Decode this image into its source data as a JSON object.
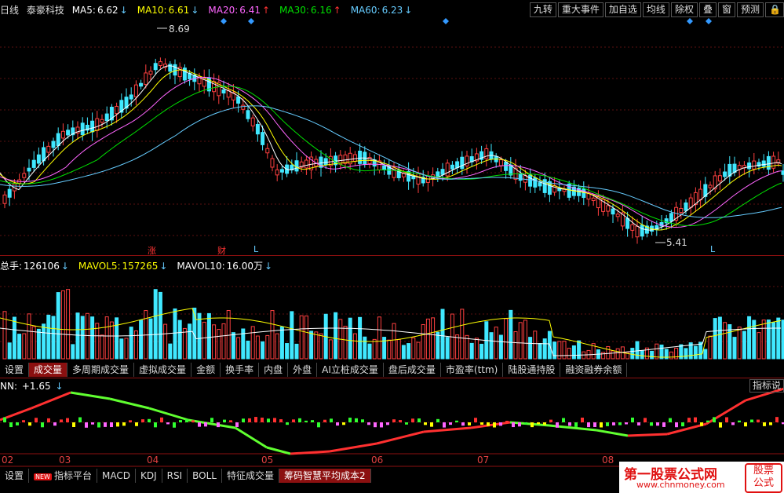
{
  "header": {
    "period": "日线",
    "stock_name": "泰豪科技",
    "ma": [
      {
        "label": "MA5:",
        "value": "6.62",
        "arrow": "↓",
        "color": "#ffffff"
      },
      {
        "label": "MA10:",
        "value": "6.61",
        "arrow": "↓",
        "color": "#ffff00"
      },
      {
        "label": "MA20:",
        "value": "6.41",
        "arrow": "↑",
        "color": "#ff66ff"
      },
      {
        "label": "MA30:",
        "value": "6.16",
        "arrow": "↑",
        "color": "#00e000"
      },
      {
        "label": "MA60:",
        "value": "6.23",
        "arrow": "↓",
        "color": "#66ccff"
      }
    ],
    "buttons": [
      "九转",
      "重大事件",
      "加自选",
      "均线",
      "除权",
      "叠",
      "窗",
      "预测"
    ],
    "lock_icon": "lock-icon"
  },
  "price_chart": {
    "high_label": "8.69",
    "low_label": "5.41",
    "markers": [
      "涨",
      "财",
      "L",
      "L"
    ]
  },
  "volume_header": {
    "items": [
      {
        "label": "总手:",
        "value": "126106",
        "arrow": "↓",
        "color": "#ffffff"
      },
      {
        "label": "MAVOL5:",
        "value": "157265",
        "arrow": "↓",
        "color": "#ffff00"
      },
      {
        "label": "MAVOL10:",
        "value": "16.00万",
        "arrow": "↓",
        "color": "#ffffff"
      }
    ]
  },
  "volume_tabs": [
    "设置",
    "成交量",
    "多周期成交量",
    "虚拟成交量",
    "金额",
    "换手率",
    "内盘",
    "外盘",
    "AI立桩成交量",
    "盘后成交量",
    "市盈率(ttm)",
    "陆股通持股",
    "融资融券余额"
  ],
  "indicator": {
    "label": "NN:",
    "value": "+1.65",
    "arrow": "↓",
    "button": "指标说"
  },
  "x_axis": [
    "02",
    "03",
    "04",
    "05",
    "06",
    "07",
    "08"
  ],
  "bottom_tabs": [
    "设置",
    "指标平台",
    "MACD",
    "KDJ",
    "RSI",
    "BOLL",
    "特征成交量",
    "筹码智慧平均成本2"
  ],
  "new_badge": "NEW",
  "watermark": {
    "title": "第一股票公式网",
    "url": "www.chnmoney.com",
    "badge_line1": "股票",
    "badge_line2": "公式"
  }
}
